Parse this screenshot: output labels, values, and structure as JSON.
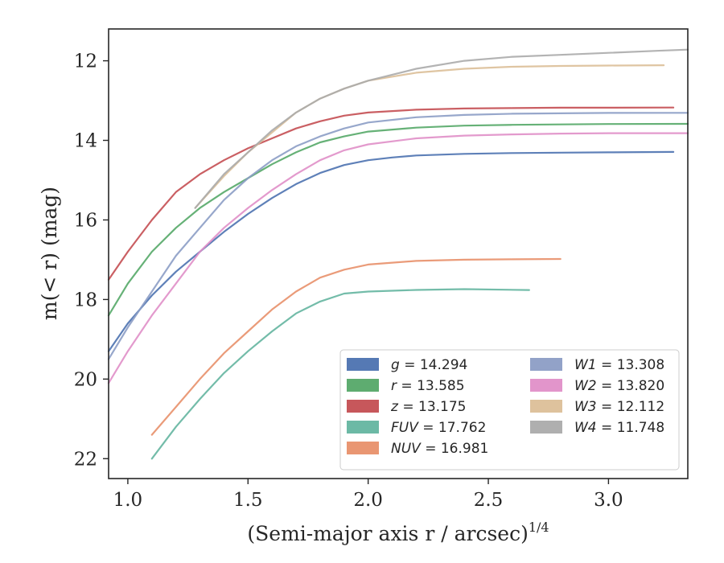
{
  "chart_data": {
    "type": "line",
    "xlabel": "(Semi-major axis r / arcsec)",
    "xlabel_exponent": "1/4",
    "ylabel": "m(< r) (mag)",
    "xlim": [
      0.92,
      3.33
    ],
    "ylim": [
      22.5,
      11.2
    ],
    "y_inverted": true,
    "x_ticks": [
      "1.0",
      "1.5",
      "2.0",
      "2.5",
      "3.0"
    ],
    "y_ticks": [
      "12",
      "14",
      "16",
      "18",
      "20",
      "22"
    ],
    "grid": false,
    "legend_position": "lower-right",
    "legend_columns": 2,
    "series": [
      {
        "name": "g",
        "value": "14.294",
        "color": "#4c72b0",
        "x": [
          0.92,
          1.0,
          1.1,
          1.2,
          1.3,
          1.4,
          1.5,
          1.6,
          1.7,
          1.8,
          1.9,
          2.0,
          2.1,
          2.2,
          2.4,
          2.6,
          2.8,
          3.0,
          3.27
        ],
        "y": [
          19.3,
          18.6,
          17.9,
          17.3,
          16.8,
          16.3,
          15.85,
          15.45,
          15.1,
          14.82,
          14.62,
          14.5,
          14.43,
          14.38,
          14.34,
          14.32,
          14.31,
          14.3,
          14.29
        ]
      },
      {
        "name": "r",
        "value": "13.585",
        "color": "#55a868",
        "x": [
          0.92,
          1.0,
          1.1,
          1.2,
          1.3,
          1.4,
          1.5,
          1.6,
          1.7,
          1.8,
          1.9,
          2.0,
          2.2,
          2.4,
          2.6,
          2.8,
          3.0,
          3.33
        ],
        "y": [
          18.4,
          17.6,
          16.8,
          16.2,
          15.7,
          15.3,
          14.95,
          14.6,
          14.3,
          14.05,
          13.9,
          13.78,
          13.68,
          13.63,
          13.61,
          13.6,
          13.59,
          13.585
        ]
      },
      {
        "name": "z",
        "value": "13.175",
        "color": "#c44e52",
        "x": [
          0.92,
          1.0,
          1.1,
          1.2,
          1.3,
          1.4,
          1.5,
          1.6,
          1.7,
          1.8,
          1.9,
          2.0,
          2.2,
          2.4,
          2.6,
          2.8,
          3.0,
          3.27
        ],
        "y": [
          17.5,
          16.8,
          16.0,
          15.3,
          14.85,
          14.5,
          14.2,
          13.95,
          13.7,
          13.52,
          13.38,
          13.3,
          13.23,
          13.2,
          13.19,
          13.18,
          13.18,
          13.175
        ]
      },
      {
        "name": "FUV",
        "value": "17.762",
        "color": "#64b5a0",
        "x": [
          1.1,
          1.2,
          1.3,
          1.4,
          1.5,
          1.6,
          1.7,
          1.8,
          1.9,
          2.0,
          2.2,
          2.4,
          2.67
        ],
        "y": [
          22.0,
          21.2,
          20.5,
          19.85,
          19.3,
          18.8,
          18.35,
          18.05,
          17.85,
          17.8,
          17.76,
          17.74,
          17.762
        ]
      },
      {
        "name": "NUV",
        "value": "16.981",
        "color": "#e8906a",
        "x": [
          1.1,
          1.2,
          1.3,
          1.4,
          1.5,
          1.6,
          1.7,
          1.8,
          1.9,
          2.0,
          2.2,
          2.4,
          2.6,
          2.8
        ],
        "y": [
          21.4,
          20.7,
          20.0,
          19.35,
          18.8,
          18.25,
          17.8,
          17.45,
          17.25,
          17.12,
          17.03,
          17.0,
          16.99,
          16.981
        ]
      },
      {
        "name": "W1",
        "value": "13.308",
        "color": "#8c9dc5",
        "x": [
          0.92,
          1.0,
          1.1,
          1.2,
          1.3,
          1.4,
          1.5,
          1.6,
          1.7,
          1.8,
          1.9,
          2.0,
          2.2,
          2.4,
          2.6,
          2.8,
          3.0,
          3.33
        ],
        "y": [
          19.5,
          18.7,
          17.8,
          16.9,
          16.2,
          15.5,
          14.95,
          14.5,
          14.15,
          13.9,
          13.7,
          13.55,
          13.42,
          13.36,
          13.33,
          13.32,
          13.31,
          13.308
        ]
      },
      {
        "name": "W2",
        "value": "13.820",
        "color": "#e08fc8",
        "x": [
          0.92,
          1.0,
          1.1,
          1.2,
          1.3,
          1.4,
          1.5,
          1.6,
          1.7,
          1.8,
          1.9,
          2.0,
          2.2,
          2.4,
          2.6,
          2.8,
          3.0,
          3.33
        ],
        "y": [
          20.1,
          19.3,
          18.4,
          17.6,
          16.8,
          16.2,
          15.7,
          15.25,
          14.85,
          14.5,
          14.25,
          14.1,
          13.95,
          13.88,
          13.85,
          13.83,
          13.82,
          13.82
        ]
      },
      {
        "name": "W3",
        "value": "12.112",
        "color": "#dcbf98",
        "x": [
          1.28,
          1.4,
          1.5,
          1.6,
          1.7,
          1.8,
          1.9,
          2.0,
          2.2,
          2.4,
          2.6,
          2.8,
          3.0,
          3.23
        ],
        "y": [
          15.7,
          14.9,
          14.3,
          13.8,
          13.3,
          12.95,
          12.7,
          12.5,
          12.3,
          12.2,
          12.15,
          12.13,
          12.12,
          12.112
        ]
      },
      {
        "name": "W4",
        "value": "11.748",
        "color": "#ababab",
        "x": [
          1.28,
          1.4,
          1.5,
          1.6,
          1.7,
          1.8,
          1.9,
          2.0,
          2.2,
          2.4,
          2.6,
          2.8,
          3.0,
          3.2,
          3.33
        ],
        "y": [
          15.7,
          14.85,
          14.3,
          13.75,
          13.3,
          12.95,
          12.7,
          12.5,
          12.2,
          12.0,
          11.9,
          11.85,
          11.8,
          11.75,
          11.72
        ]
      }
    ]
  }
}
